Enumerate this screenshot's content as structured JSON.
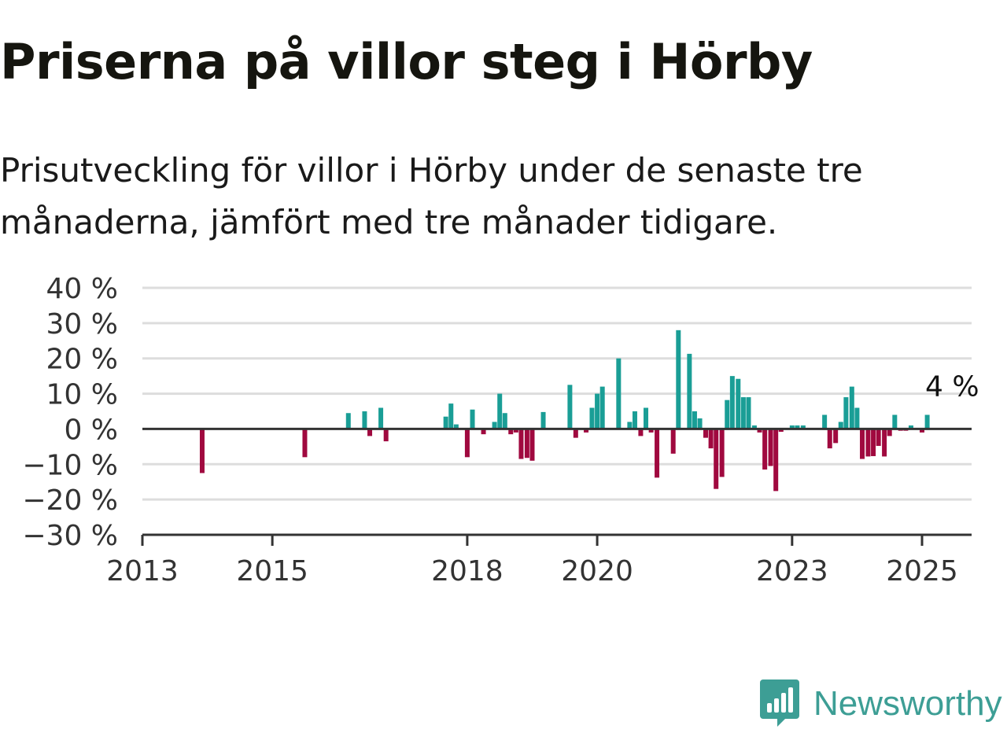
{
  "title": "Priserna på villor steg i Hörby",
  "subtitle": "Prisutveckling för villor i Hörby under de senaste tre månaderna, jämfört med tre månader tidigare.",
  "brand": {
    "name": "Newsworthy",
    "logo_icon": "bar-chart-speech-bubble-icon"
  },
  "colors": {
    "positive": "#1a9e96",
    "negative": "#a0093f",
    "grid": "#dddddd",
    "zero_line": "#333333",
    "brand": "#3d9e95"
  },
  "chart_data": {
    "type": "bar",
    "ylim": [
      -30,
      40
    ],
    "y_ticks": [
      40,
      30,
      20,
      10,
      0,
      -10,
      -20,
      -30
    ],
    "y_tick_labels": [
      "40 %",
      "30 %",
      "20 %",
      "10 %",
      "0 %",
      "−10 %",
      "−20 %",
      "−30 %"
    ],
    "x_ticks": [
      2013,
      2015,
      2018,
      2020,
      2023,
      2025
    ],
    "x_tick_labels": [
      "2013",
      "2015",
      "2018",
      "2020",
      "2023",
      "2025"
    ],
    "xlim": [
      2013.0,
      2025.65
    ],
    "grid": true,
    "annotation": {
      "label": "4 %",
      "x": 2025.1,
      "value": 4
    },
    "series": [
      {
        "x": [
          2013.92,
          2015.5,
          2016.17,
          2016.42,
          2016.5,
          2016.67,
          2016.75,
          2017.67,
          2017.75,
          2017.83,
          2018.0,
          2018.08,
          2018.25,
          2018.42,
          2018.5,
          2018.58,
          2018.67,
          2018.75,
          2018.83,
          2018.92,
          2019.0,
          2019.17,
          2019.58,
          2019.67,
          2019.83,
          2019.92,
          2020.0,
          2020.08,
          2020.33,
          2020.5,
          2020.58,
          2020.67,
          2020.75,
          2020.83,
          2020.92,
          2021.17,
          2021.25,
          2021.42,
          2021.5,
          2021.58,
          2021.67,
          2021.75,
          2021.83,
          2021.92,
          2022.0,
          2022.08,
          2022.17,
          2022.25,
          2022.33,
          2022.42,
          2022.5,
          2022.58,
          2022.67,
          2022.75,
          2022.83,
          2023.0,
          2023.08,
          2023.17,
          2023.5,
          2023.58,
          2023.67,
          2023.75,
          2023.83,
          2023.92,
          2024.0,
          2024.08,
          2024.17,
          2024.25,
          2024.33,
          2024.42,
          2024.5,
          2024.58,
          2024.67,
          2024.75,
          2024.83,
          2025.0,
          2025.08
        ],
        "values": [
          -12.5,
          -8,
          4.5,
          5,
          -2,
          6,
          -3.5,
          3.5,
          7.2,
          1.3,
          -8,
          5.5,
          -1.5,
          2,
          10,
          4.5,
          -1.5,
          -1,
          -8.5,
          -8.2,
          -9,
          4.8,
          12.5,
          -2.5,
          -1,
          6,
          10,
          12,
          20,
          2,
          5,
          -2,
          6,
          -1,
          -13.8,
          -7,
          28,
          21.3,
          5,
          3,
          -2.5,
          -5.5,
          -17,
          -13.6,
          8.2,
          15,
          14.2,
          9,
          9,
          1,
          -1,
          -11.5,
          -10.5,
          -17.6,
          -0.8,
          1,
          1,
          1,
          4,
          -5.5,
          -4,
          2,
          9,
          12,
          6,
          -8.5,
          -7.8,
          -7.7,
          -4.8,
          -7.8,
          -2,
          4,
          -0.5,
          -0.5,
          1,
          -1,
          4
        ]
      }
    ]
  }
}
